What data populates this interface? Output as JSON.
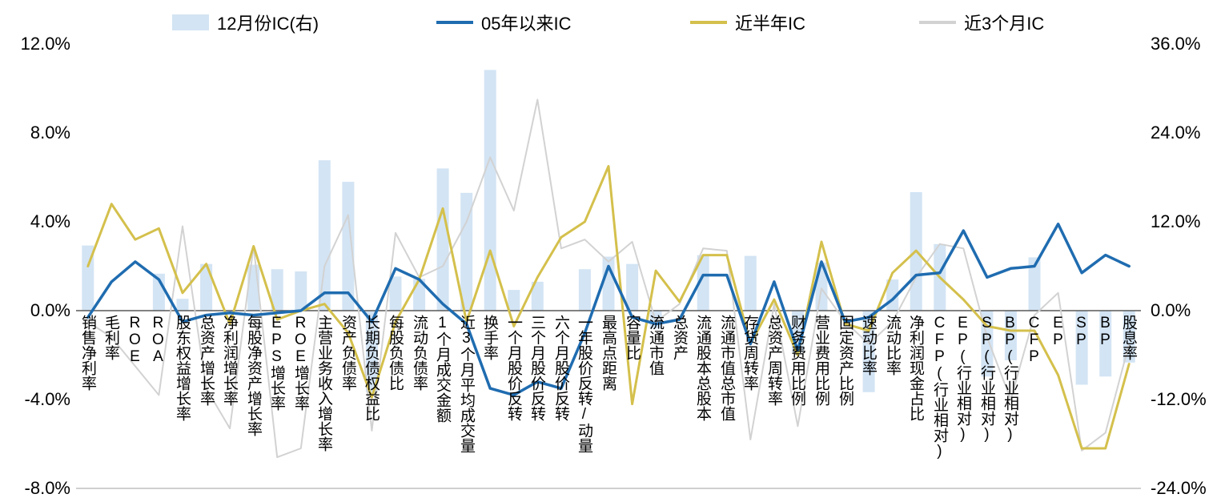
{
  "chart_data": {
    "type": "bar+line combo (bars on right axis, lines on left axis)",
    "title": "",
    "categories": [
      "销售净利率",
      "毛利率",
      "ROE",
      "ROA",
      "股东权益增长率",
      "总资产增长率",
      "净利润增长率",
      "每股净资产增长率",
      "EPS增长率",
      "ROE增长率",
      "主营业务收入增长率",
      "资产负债率",
      "长期负债权益比",
      "每股负债比",
      "流动负债率",
      "1个月成交金额",
      "近3个月平均成交量",
      "换手率",
      "一个月股价反转",
      "三个月股价反转",
      "六个月股价反转",
      "一年股价反转/动量",
      "最高点距离",
      "容量比",
      "流通市值",
      "总资产",
      "流通股本总股本",
      "流通市值总市值",
      "存货周转率",
      "总资产周转率",
      "财务费用比例",
      "营业费用比例",
      "固定资产比例",
      "速动比率",
      "流动比率",
      "净利润现金占比",
      "CFP(行业相对)",
      "EP(行业相对)",
      "SP(行业相对)",
      "BP(行业相对)",
      "CFP",
      "EP",
      "SP",
      "BP",
      "股息率"
    ],
    "series": [
      {
        "name": "12月份IC(右)",
        "type": "bar",
        "axis": "right",
        "color": "#d3e4f4",
        "values": [
          8.8,
          0,
          0,
          5.0,
          1.6,
          6.3,
          0,
          6.2,
          5.6,
          5.3,
          20.3,
          17.4,
          -11.0,
          4.6,
          4.3,
          19.2,
          15.9,
          32.5,
          2.8,
          3.9,
          0,
          5.6,
          7.3,
          6.3,
          -2.4,
          0,
          7.5,
          0,
          7.4,
          0,
          -5.6,
          6.5,
          0,
          -11.0,
          4.2,
          16.0,
          9.0,
          0,
          -8.9,
          -6.7,
          7.2,
          0,
          -10.0,
          -8.9,
          -7.0
        ]
      },
      {
        "name": "05年以来IC",
        "type": "line",
        "axis": "left",
        "color": "#1f6cb0",
        "values": [
          -0.3,
          1.3,
          2.2,
          1.4,
          -0.5,
          -0.2,
          -0.1,
          -0.2,
          -0.1,
          0.0,
          0.8,
          0.8,
          -0.5,
          1.9,
          1.4,
          0.3,
          -0.6,
          -3.5,
          -3.8,
          -3.2,
          -3.5,
          -1.0,
          2.0,
          -0.3,
          -0.6,
          -0.4,
          1.6,
          1.6,
          -1.5,
          1.3,
          -1.8,
          2.2,
          -0.5,
          -0.3,
          0.5,
          1.6,
          1.7,
          3.6,
          1.5,
          1.9,
          2.0,
          3.9,
          1.7,
          2.5,
          2.0
        ]
      },
      {
        "name": "近半年IC",
        "type": "line",
        "axis": "left",
        "color": "#d4c04c",
        "values": [
          2.0,
          4.8,
          3.2,
          3.7,
          0.8,
          2.1,
          -0.6,
          2.9,
          -0.4,
          0.0,
          0.3,
          -1.0,
          -3.9,
          -0.5,
          1.4,
          4.6,
          -0.5,
          2.7,
          -0.7,
          1.5,
          3.3,
          4.0,
          6.5,
          -4.2,
          1.8,
          0.4,
          2.5,
          2.5,
          -1.5,
          0.5,
          -2.0,
          3.1,
          -0.6,
          -0.9,
          1.7,
          2.7,
          1.5,
          0.5,
          -0.7,
          -0.9,
          -0.9,
          -2.9,
          -6.2,
          -6.2,
          -2.4
        ]
      },
      {
        "name": "近3个月IC",
        "type": "line",
        "axis": "left",
        "color": "#d2d2d2",
        "values": [
          -0.5,
          -1.2,
          -2.5,
          -3.8,
          3.8,
          -3.5,
          -5.3,
          2.9,
          -6.6,
          -6.2,
          2.0,
          4.3,
          -5.4,
          3.5,
          1.5,
          2.0,
          4.0,
          6.9,
          4.5,
          9.5,
          2.8,
          3.2,
          2.2,
          3.1,
          -0.5,
          0.3,
          2.8,
          2.7,
          -5.8,
          0.3,
          -5.2,
          1.0,
          -0.5,
          -1.5,
          -0.5,
          1.5,
          3.0,
          2.8,
          -1.2,
          -4.0,
          -0.2,
          0.8,
          -6.3,
          -5.5,
          -1.5
        ]
      }
    ],
    "left_axis": {
      "min": -8,
      "max": 12,
      "tick_labels": [
        "12.0%",
        "8.0%",
        "4.0%",
        "0.0%",
        "-4.0%",
        "-8.0%"
      ],
      "tick_values": [
        12,
        8,
        4,
        0,
        -4,
        -8
      ]
    },
    "right_axis": {
      "min": -24,
      "max": 36,
      "tick_labels": [
        "36.0%",
        "24.0%",
        "12.0%",
        "0.0%",
        "-12.0%",
        "-24.0%"
      ],
      "tick_values": [
        36,
        24,
        12,
        0,
        -12,
        -24
      ]
    },
    "grid": "off",
    "legend_position": "top",
    "zero_line_color": "#595959",
    "baseline_color": "#bfbfbf"
  }
}
